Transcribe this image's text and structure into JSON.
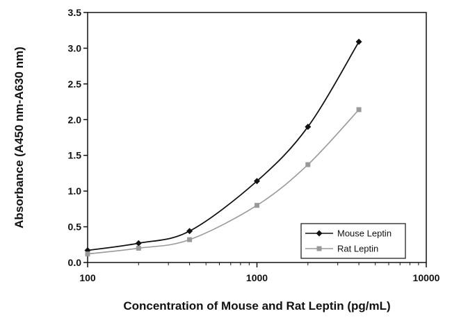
{
  "chart_data": {
    "type": "line",
    "title": "",
    "xlabel": "Concentration of Mouse and Rat Leptin (pg/mL)",
    "ylabel": "Absorbance (A450 nm-A630 nm)",
    "x_scale": "log",
    "xlim": [
      100,
      10000
    ],
    "ylim": [
      0,
      3.5
    ],
    "x_ticks": [
      100,
      1000,
      10000
    ],
    "x_tick_labels": [
      "100",
      "1000",
      "10000"
    ],
    "y_ticks": [
      0,
      0.5,
      1.0,
      1.5,
      2.0,
      2.5,
      3.0,
      3.5
    ],
    "y_tick_labels": [
      "0.0",
      "0.5",
      "1.0",
      "1.5",
      "2.0",
      "2.5",
      "3.0",
      "3.5"
    ],
    "grid": false,
    "legend_position": "bottom-right",
    "series": [
      {
        "name": "Mouse Leptin",
        "color": "#111111",
        "marker": "diamond",
        "x": [
          100,
          200,
          400,
          1000,
          2000,
          4000
        ],
        "y": [
          0.17,
          0.27,
          0.44,
          1.14,
          1.9,
          3.09
        ]
      },
      {
        "name": "Rat Leptin",
        "color": "#999999",
        "marker": "square",
        "x": [
          100,
          200,
          400,
          1000,
          2000,
          4000
        ],
        "y": [
          0.12,
          0.2,
          0.32,
          0.8,
          1.37,
          2.14
        ]
      }
    ]
  }
}
